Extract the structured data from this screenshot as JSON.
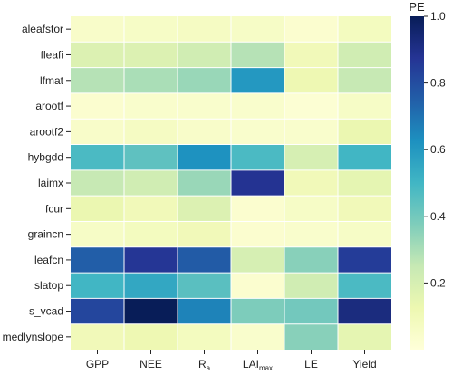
{
  "chart_data": {
    "type": "heatmap",
    "title": "",
    "xlabel": "",
    "ylabel": "",
    "x_categories": [
      {
        "id": "gpp",
        "main": "GPP",
        "sub": ""
      },
      {
        "id": "nee",
        "main": "NEE",
        "sub": ""
      },
      {
        "id": "ra",
        "main": "R",
        "sub": "a"
      },
      {
        "id": "laimax",
        "main": "LAI",
        "sub": "max"
      },
      {
        "id": "le",
        "main": "LE",
        "sub": ""
      },
      {
        "id": "yield",
        "main": "Yield",
        "sub": ""
      }
    ],
    "y_categories": [
      "aleafstor",
      "fleafi",
      "lfmat",
      "arootf",
      "arootf2",
      "hybgdd",
      "laimx",
      "fcur",
      "graincn",
      "leafcn",
      "slatop",
      "s_vcad",
      "medlynslope"
    ],
    "values": [
      [
        0.05,
        0.06,
        0.07,
        0.06,
        0.03,
        0.08
      ],
      [
        0.18,
        0.18,
        0.22,
        0.28,
        0.1,
        0.22
      ],
      [
        0.28,
        0.3,
        0.33,
        0.6,
        0.12,
        0.25
      ],
      [
        0.03,
        0.04,
        0.04,
        0.04,
        0.02,
        0.06
      ],
      [
        0.05,
        0.07,
        0.05,
        0.04,
        0.04,
        0.13
      ],
      [
        0.48,
        0.44,
        0.62,
        0.48,
        0.2,
        0.5
      ],
      [
        0.25,
        0.22,
        0.33,
        0.88,
        0.1,
        0.15
      ],
      [
        0.13,
        0.1,
        0.18,
        0.03,
        0.06,
        0.1
      ],
      [
        0.06,
        0.08,
        0.1,
        0.03,
        0.04,
        0.06
      ],
      [
        0.75,
        0.87,
        0.76,
        0.2,
        0.36,
        0.85
      ],
      [
        0.5,
        0.55,
        0.45,
        0.03,
        0.22,
        0.48
      ],
      [
        0.82,
        1.0,
        0.66,
        0.38,
        0.4,
        0.92
      ],
      [
        0.1,
        0.12,
        0.08,
        0.04,
        0.36,
        0.15
      ]
    ],
    "colorbar": {
      "title": "PE",
      "min": 0.0,
      "max": 1.0,
      "ticks": [
        0.2,
        0.4,
        0.6,
        0.8,
        1.0
      ],
      "tick_labels": [
        "0.2",
        "0.4",
        "0.6",
        "0.8",
        "1.0"
      ],
      "colormap": "YlGnBu",
      "colormap_stops": [
        "#ffffd9",
        "#edf8b1",
        "#c7e9b4",
        "#7fcdbb",
        "#41b6c4",
        "#1d91c0",
        "#225ea8",
        "#253494",
        "#081d58"
      ]
    },
    "grid_lines": true,
    "legend_position": "right"
  }
}
